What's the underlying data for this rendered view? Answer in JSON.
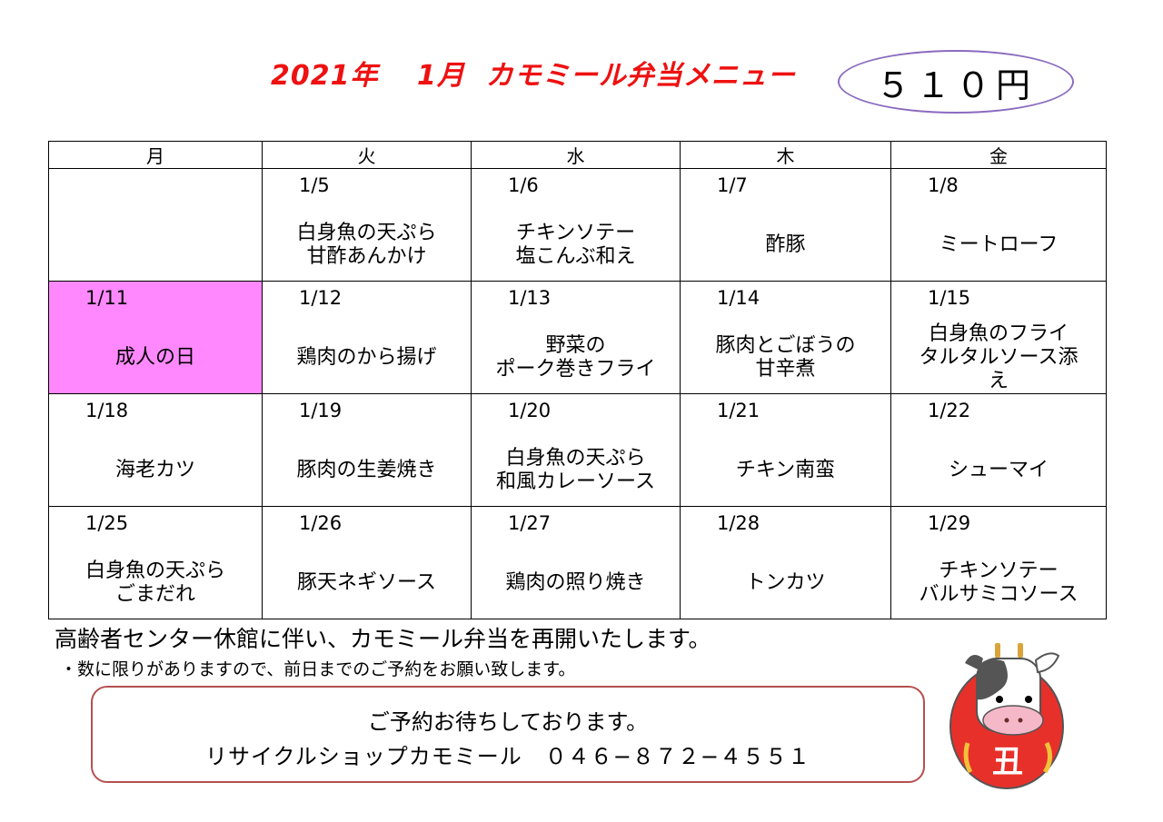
{
  "header": {
    "title": "2021年　 1月  カモミール弁当メニュー",
    "price": "５１０円"
  },
  "weekdays": [
    "月",
    "火",
    "水",
    "木",
    "金"
  ],
  "weeks": [
    [
      {
        "date": "",
        "menu": ""
      },
      {
        "date": "1/5",
        "menu": "白身魚の天ぷら\n甘酢あんかけ"
      },
      {
        "date": "1/6",
        "menu": "チキンソテー\n塩こんぶ和え"
      },
      {
        "date": "1/7",
        "menu": "酢豚"
      },
      {
        "date": "1/8",
        "menu": "ミートローフ"
      }
    ],
    [
      {
        "date": "1/11",
        "menu": "成人の日",
        "holiday": true
      },
      {
        "date": "1/12",
        "menu": "鶏肉のから揚げ"
      },
      {
        "date": "1/13",
        "menu": "野菜の\nポーク巻きフライ"
      },
      {
        "date": "1/14",
        "menu": "豚肉とごぼうの\n甘辛煮"
      },
      {
        "date": "1/15",
        "menu": "白身魚のフライ\nタルタルソース添\nえ"
      }
    ],
    [
      {
        "date": "1/18",
        "menu": "海老カツ"
      },
      {
        "date": "1/19",
        "menu": "豚肉の生姜焼き"
      },
      {
        "date": "1/20",
        "menu": "白身魚の天ぷら\n和風カレーソース"
      },
      {
        "date": "1/21",
        "menu": "チキン南蛮"
      },
      {
        "date": "1/22",
        "menu": "シューマイ"
      }
    ],
    [
      {
        "date": "1/25",
        "menu": "白身魚の天ぷら\nごまだれ"
      },
      {
        "date": "1/26",
        "menu": "豚天ネギソース"
      },
      {
        "date": "1/27",
        "menu": "鶏肉の照り焼き"
      },
      {
        "date": "1/28",
        "menu": "トンカツ"
      },
      {
        "date": "1/29",
        "menu": "チキンソテー\nバルサミコソース"
      }
    ]
  ],
  "notes": {
    "line1": "高齢者センター休館に伴い、カモミール弁当を再開いたします。",
    "line2": "・数に限りがありますので、前日までのご予約をお願い致します。"
  },
  "contact": {
    "line1": "ご予約お待ちしております。",
    "line2": "リサイクルショップカモミール　０４６−８７２−４５５１"
  },
  "illustration": {
    "kanji": "丑",
    "icon": "cow-daruma-icon"
  },
  "colors": {
    "title": "#ee1111",
    "holiday": "#ff88ff",
    "price_border": "#8a6bbf",
    "contact_border": "#b55050",
    "daruma": "#e8302a"
  }
}
